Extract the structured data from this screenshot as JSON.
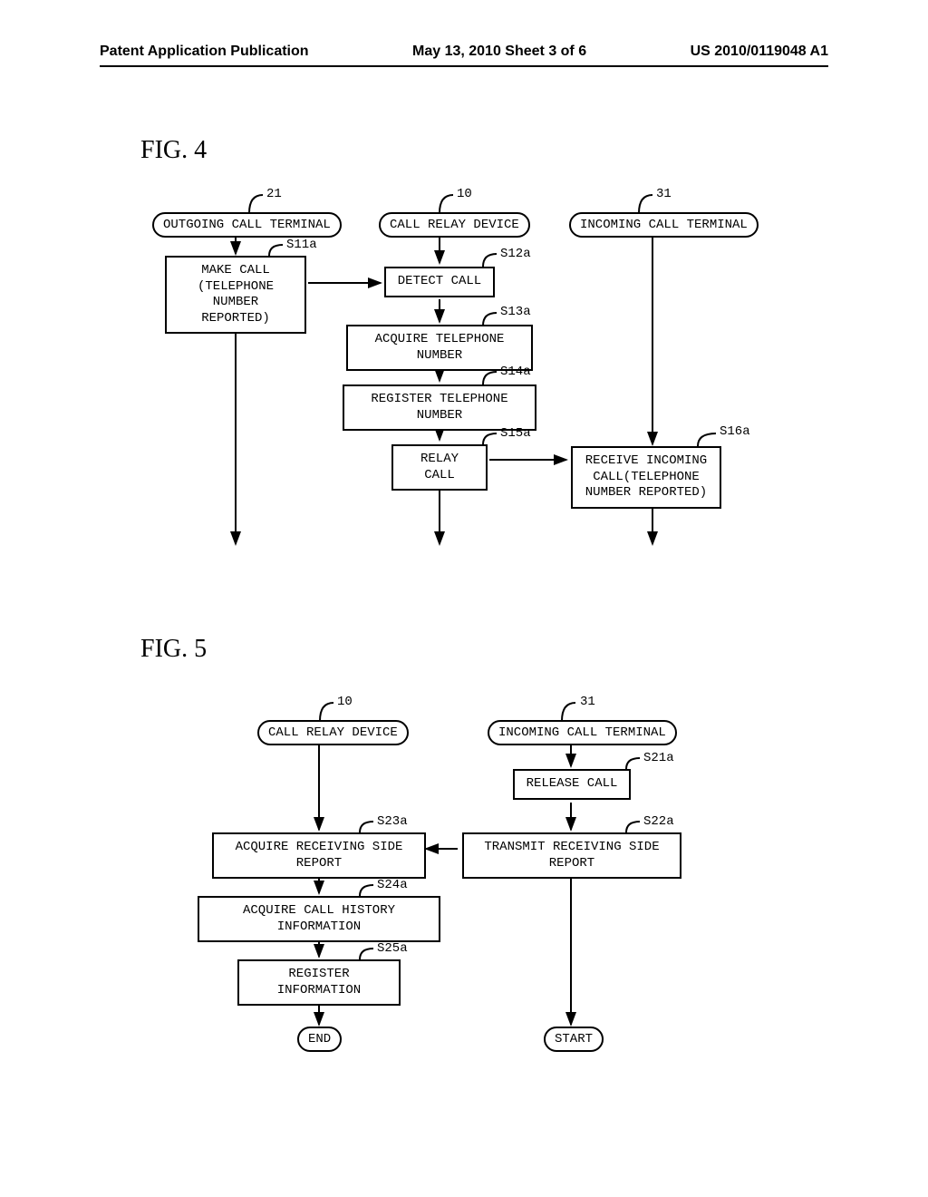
{
  "header": {
    "left": "Patent Application Publication",
    "center": "May 13, 2010  Sheet 3 of 6",
    "right": "US 2010/0119048 A1"
  },
  "fig4": {
    "label": "FIG. 4",
    "lanes": {
      "outgoing": {
        "num": "21",
        "title": "OUTGOING CALL TERMINAL"
      },
      "relay": {
        "num": "10",
        "title": "CALL RELAY DEVICE"
      },
      "incoming": {
        "num": "31",
        "title": "INCOMING CALL TERMINAL"
      }
    },
    "steps": {
      "s11a": {
        "id": "S11a",
        "text": "MAKE CALL\n(TELEPHONE NUMBER\nREPORTED)"
      },
      "s12a": {
        "id": "S12a",
        "text": "DETECT CALL"
      },
      "s13a": {
        "id": "S13a",
        "text": "ACQUIRE TELEPHONE NUMBER"
      },
      "s14a": {
        "id": "S14a",
        "text": "REGISTER TELEPHONE NUMBER"
      },
      "s15a": {
        "id": "S15a",
        "text": "RELAY CALL"
      },
      "s16a": {
        "id": "S16a",
        "text": "RECEIVE INCOMING\nCALL(TELEPHONE\nNUMBER REPORTED)"
      }
    }
  },
  "fig5": {
    "label": "FIG. 5",
    "lanes": {
      "relay": {
        "num": "10",
        "title": "CALL RELAY DEVICE"
      },
      "incoming": {
        "num": "31",
        "title": "INCOMING CALL TERMINAL"
      }
    },
    "steps": {
      "s21a": {
        "id": "S21a",
        "text": "RELEASE CALL"
      },
      "s22a": {
        "id": "S22a",
        "text": "TRANSMIT RECEIVING SIDE REPORT"
      },
      "s23a": {
        "id": "S23a",
        "text": "ACQUIRE RECEIVING SIDE REPORT"
      },
      "s24a": {
        "id": "S24a",
        "text": "ACQUIRE CALL HISTORY INFORMATION"
      },
      "s25a": {
        "id": "S25a",
        "text": "REGISTER INFORMATION"
      }
    },
    "terminals": {
      "end": "END",
      "start": "START"
    }
  },
  "style": {
    "stroke": "#000000",
    "stroke_width": 2,
    "font_mono": "Courier New",
    "font_serif": "Times New Roman"
  }
}
